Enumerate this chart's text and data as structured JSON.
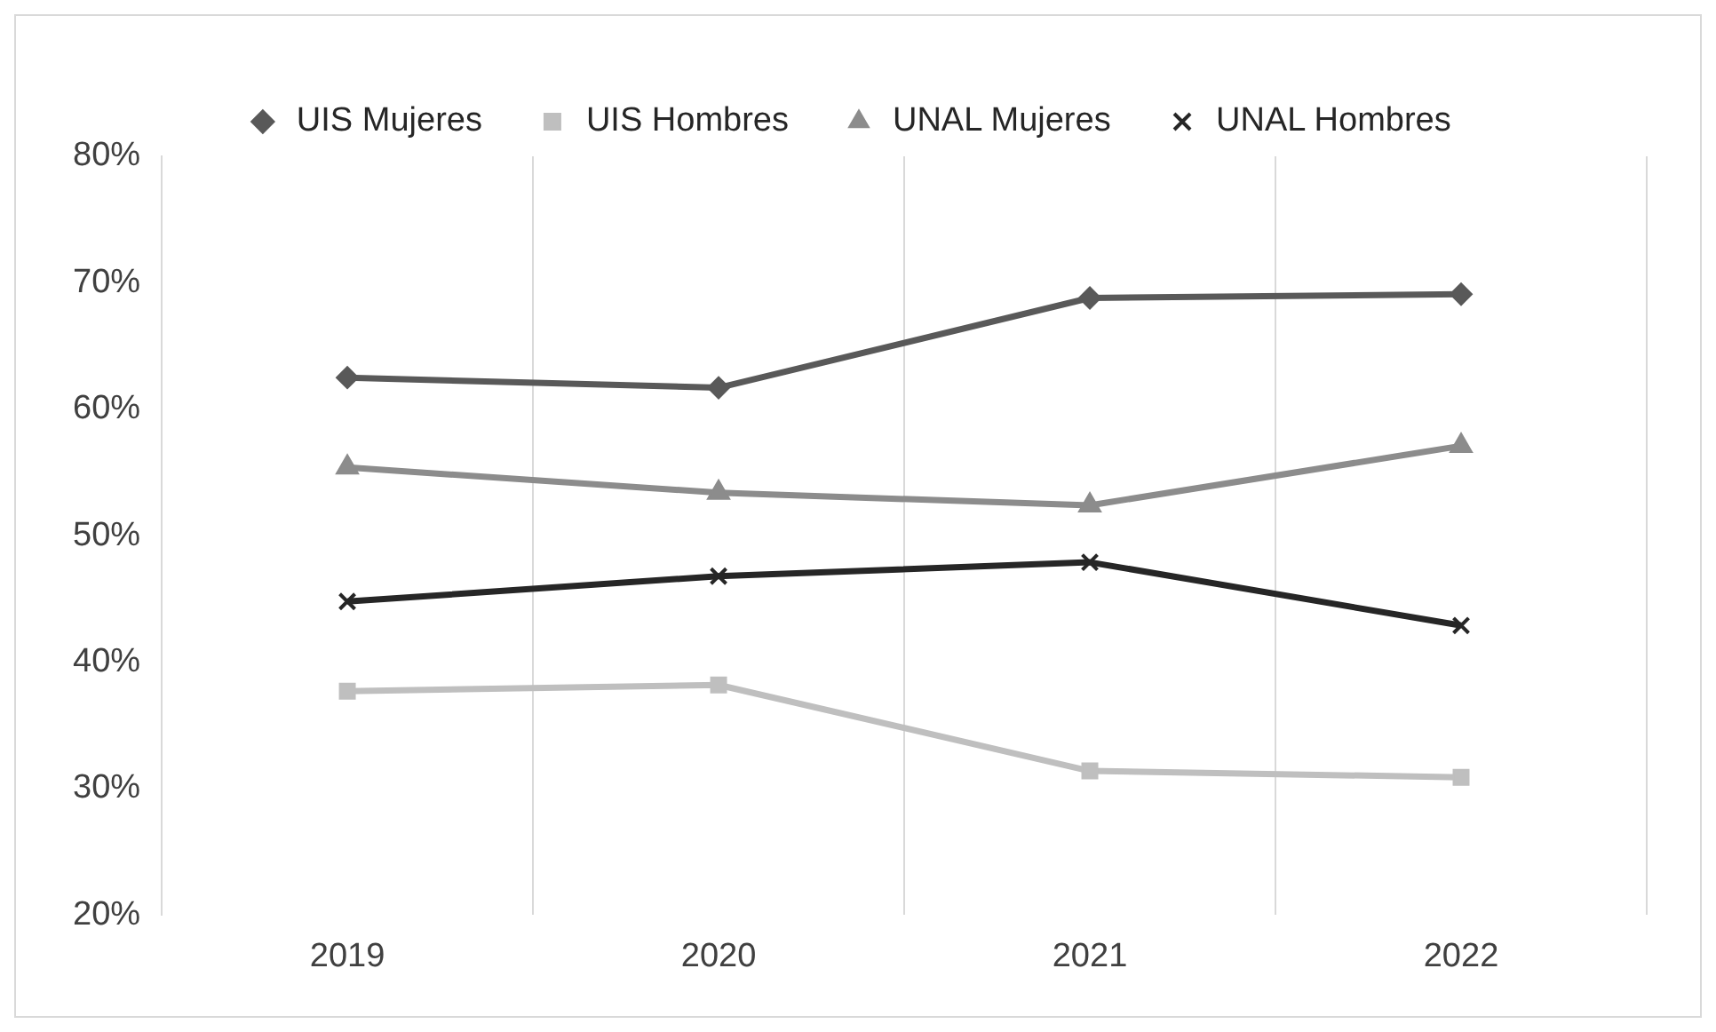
{
  "chart_data": {
    "type": "line",
    "categories": [
      "2019",
      "2020",
      "2021",
      "2022"
    ],
    "series": [
      {
        "name": "UIS Mujeres",
        "color": "#595959",
        "marker": "diamond",
        "values": [
          62.5,
          61.7,
          68.8,
          69.1
        ]
      },
      {
        "name": "UIS Hombres",
        "color": "#bfbfbf",
        "marker": "square",
        "values": [
          37.7,
          38.2,
          31.4,
          30.9
        ]
      },
      {
        "name": "UNAL Mujeres",
        "color": "#8c8c8c",
        "marker": "triangle",
        "values": [
          55.4,
          53.4,
          52.4,
          57.1
        ]
      },
      {
        "name": "UNAL Hombres",
        "color": "#262626",
        "marker": "cross",
        "values": [
          44.8,
          46.8,
          47.9,
          42.9
        ]
      }
    ],
    "ylim": [
      20,
      80
    ],
    "yticks": [
      {
        "value": 20,
        "label": "20%"
      },
      {
        "value": 30,
        "label": "30%"
      },
      {
        "value": 40,
        "label": "40%"
      },
      {
        "value": 50,
        "label": "50%"
      },
      {
        "value": 60,
        "label": "60%"
      },
      {
        "value": 70,
        "label": "70%"
      },
      {
        "value": 80,
        "label": "80%"
      }
    ],
    "grid": "x",
    "legend": "top",
    "line_style": "solid"
  }
}
